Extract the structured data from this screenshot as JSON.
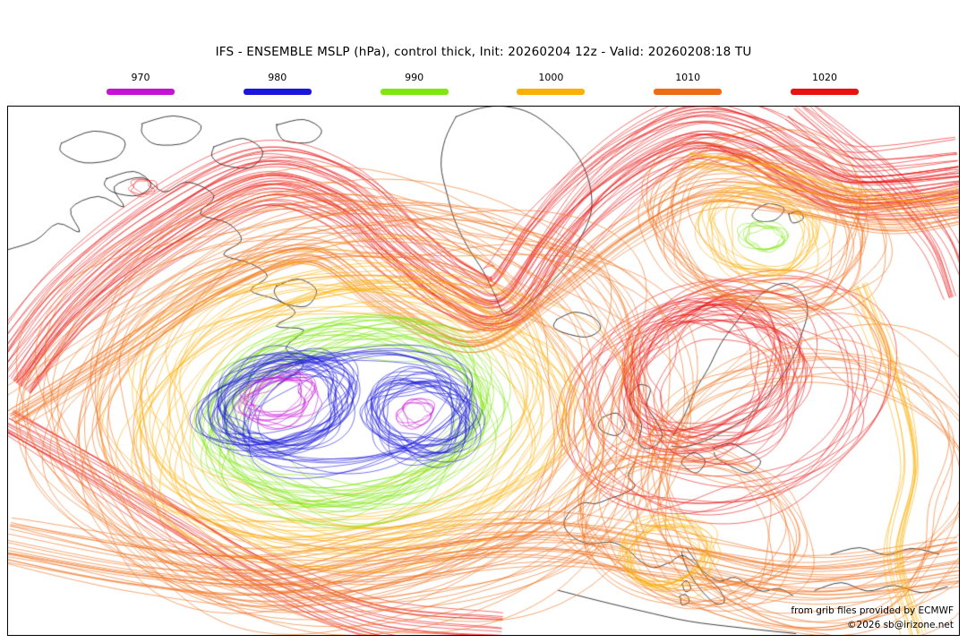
{
  "title": "IFS - ENSEMBLE MSLP (hPa), control thick, Init: 20260204 12z - Valid: 20260208:18 TU",
  "legend": {
    "items": [
      {
        "label": "970",
        "color": "#c611d6"
      },
      {
        "label": "980",
        "color": "#1a17dc"
      },
      {
        "label": "990",
        "color": "#7fe60e"
      },
      {
        "label": "1000",
        "color": "#fbb005"
      },
      {
        "label": "1010",
        "color": "#ef6c16"
      },
      {
        "label": "1020",
        "color": "#e91111"
      }
    ]
  },
  "credits": {
    "source": "from grib files provided by ECMWF",
    "copyright": "©2026 sb@irizone.net"
  }
}
